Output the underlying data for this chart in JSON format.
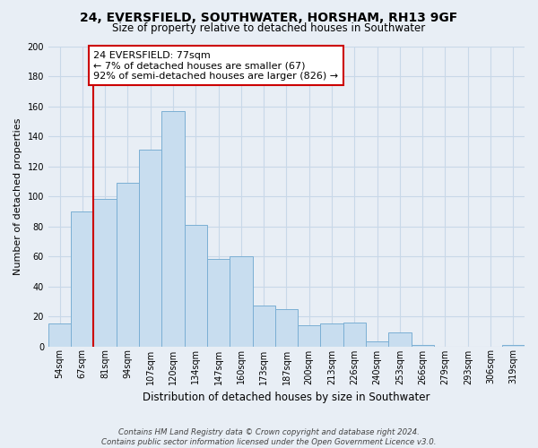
{
  "title": "24, EVERSFIELD, SOUTHWATER, HORSHAM, RH13 9GF",
  "subtitle": "Size of property relative to detached houses in Southwater",
  "xlabel": "Distribution of detached houses by size in Southwater",
  "ylabel": "Number of detached properties",
  "bar_labels": [
    "54sqm",
    "67sqm",
    "81sqm",
    "94sqm",
    "107sqm",
    "120sqm",
    "134sqm",
    "147sqm",
    "160sqm",
    "173sqm",
    "187sqm",
    "200sqm",
    "213sqm",
    "226sqm",
    "240sqm",
    "253sqm",
    "266sqm",
    "279sqm",
    "293sqm",
    "306sqm",
    "319sqm"
  ],
  "bar_heights": [
    15,
    90,
    98,
    109,
    131,
    157,
    81,
    58,
    60,
    27,
    25,
    14,
    15,
    16,
    3,
    9,
    1,
    0,
    0,
    0,
    1
  ],
  "bar_color": "#c8ddef",
  "bar_edge_color": "#7bafd4",
  "grid_color": "#c8d8e8",
  "vline_color": "#cc0000",
  "annotation_text_line1": "24 EVERSFIELD: 77sqm",
  "annotation_text_line2": "← 7% of detached houses are smaller (67)",
  "annotation_text_line3": "92% of semi-detached houses are larger (826) →",
  "annotation_box_color": "#ffffff",
  "annotation_box_edge": "#cc0000",
  "ylim": [
    0,
    200
  ],
  "yticks": [
    0,
    20,
    40,
    60,
    80,
    100,
    120,
    140,
    160,
    180,
    200
  ],
  "footer_line1": "Contains HM Land Registry data © Crown copyright and database right 2024.",
  "footer_line2": "Contains public sector information licensed under the Open Government Licence v3.0.",
  "bg_color": "#e8eef5",
  "title_fontsize": 10,
  "subtitle_fontsize": 8.5,
  "ylabel_fontsize": 8,
  "xlabel_fontsize": 8.5,
  "tick_fontsize": 7,
  "vline_bar_index": 2
}
